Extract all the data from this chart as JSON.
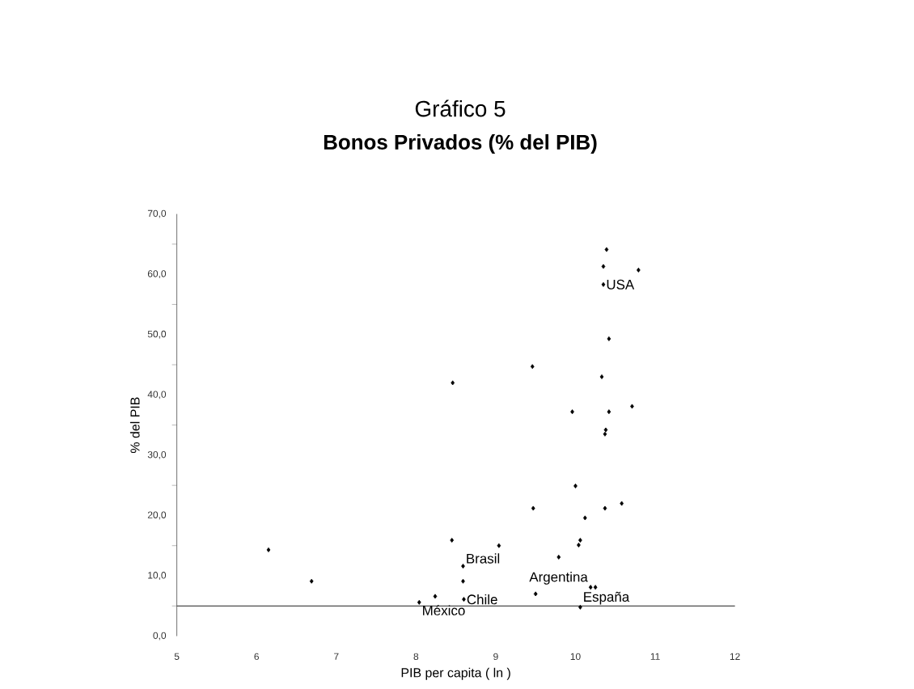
{
  "chart_data": {
    "type": "scatter",
    "title": "Gráfico 5",
    "subtitle": "Bonos Privados (% del PIB)",
    "xlabel": "PIB per capita ( ln )",
    "ylabel": "% del PIB",
    "x": [
      6.15,
      6.69,
      8.46,
      8.45,
      8.59,
      8.59,
      8.6,
      8.24,
      8.04,
      9.04,
      10.39,
      10.35,
      10.79,
      10.35,
      10.42,
      9.46,
      10.33,
      9.96,
      10.42,
      10.71,
      10.38,
      10.37,
      10.0,
      9.47,
      10.37,
      10.58,
      10.12,
      10.06,
      10.04,
      9.79,
      10.19,
      10.25,
      9.5,
      10.06
    ],
    "values": [
      14.3,
      9.1,
      42.0,
      15.9,
      11.6,
      9.1,
      6.1,
      6.6,
      5.6,
      15.0,
      64.1,
      61.3,
      60.7,
      58.3,
      49.3,
      44.7,
      43.0,
      37.2,
      37.2,
      38.1,
      34.2,
      33.5,
      24.9,
      21.2,
      21.2,
      22.0,
      19.6,
      15.9,
      15.1,
      13.1,
      8.1,
      8.1,
      7.0,
      4.8
    ],
    "color": "#000000",
    "marker": "diamond",
    "xlim": [
      5,
      12
    ],
    "xticks": [
      5,
      6,
      7,
      8,
      9,
      10,
      11,
      12
    ],
    "ylim": [
      0,
      70
    ],
    "yticks": [
      {
        "value": 0,
        "label": "0,0"
      },
      {
        "value": 10,
        "label": "10,0"
      },
      {
        "value": 20,
        "label": "20,0"
      },
      {
        "value": 30,
        "label": "30,0"
      },
      {
        "value": 40,
        "label": "40,0"
      },
      {
        "value": 50,
        "label": "50,0"
      },
      {
        "value": 60,
        "label": "60,0"
      },
      {
        "value": 70,
        "label": "70,0"
      }
    ],
    "ref_lines": [
      {
        "axis": "y",
        "value": 5,
        "color": "#4c4c4c"
      }
    ],
    "annotations": [
      {
        "text": "USA",
        "x": 10.35,
        "y": 58.3
      },
      {
        "text": "Brasil",
        "x": 8.59,
        "y": 11.6
      },
      {
        "text": "Argentina",
        "x": 10.19,
        "y": 8.1
      },
      {
        "text": "Chile",
        "x": 8.6,
        "y": 6.1
      },
      {
        "text": "México",
        "x": 8.04,
        "y": 5.6
      },
      {
        "text": "España",
        "x": 10.06,
        "y": 4.8
      }
    ]
  }
}
